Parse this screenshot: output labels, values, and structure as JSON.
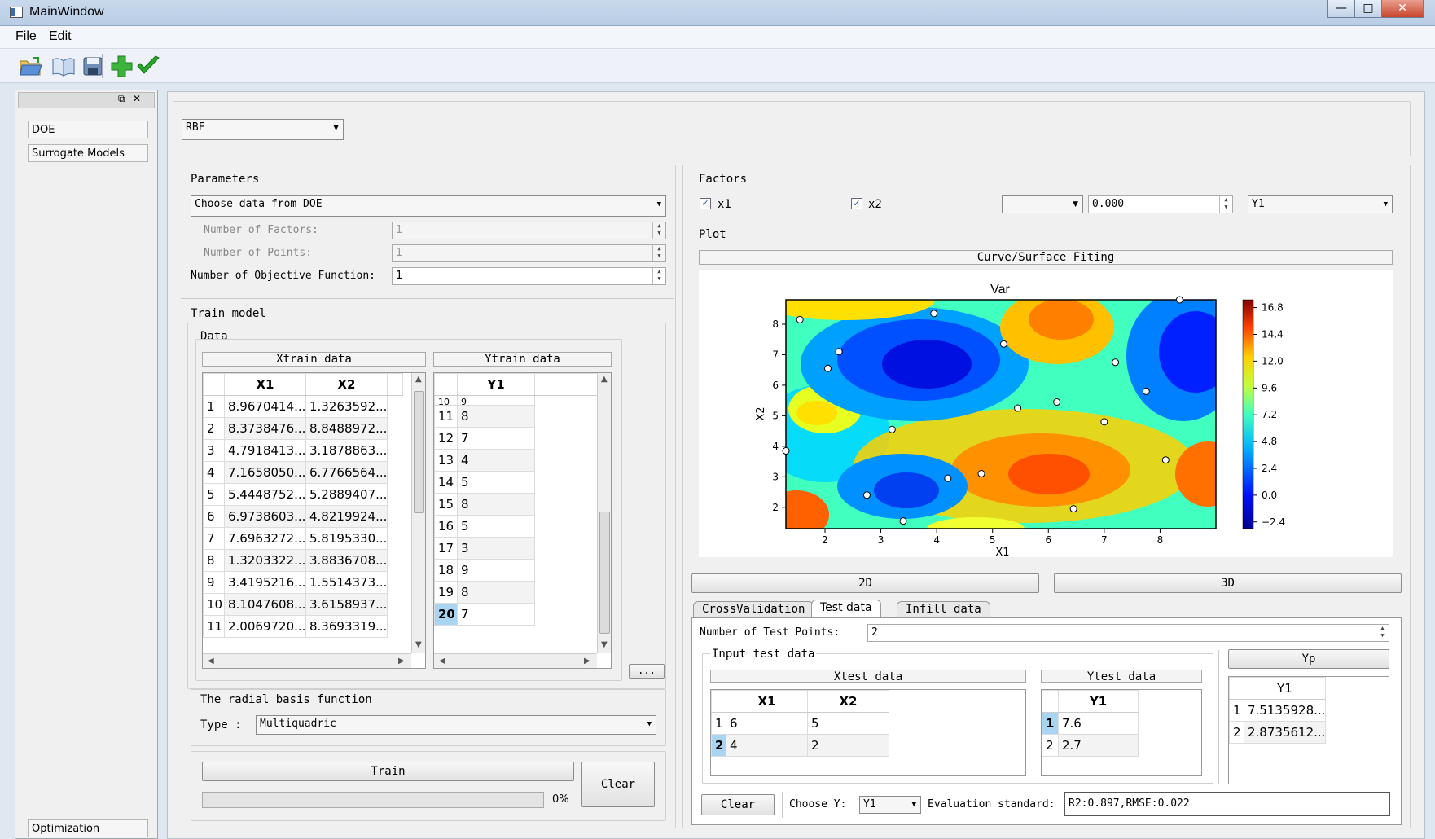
{
  "window": {
    "title": "MainWindow",
    "minimize": "—",
    "maximize": "□",
    "close": "✕"
  },
  "menu": {
    "file": "File",
    "edit": "Edit"
  },
  "toolbar": {
    "icons": [
      "open-folder-icon",
      "open-book-icon",
      "save-icon",
      "add-icon",
      "check-icon"
    ]
  },
  "dock": {
    "items": [
      "DOE",
      "Surrogate Models"
    ],
    "bottom": "Optimization",
    "float": "⧉",
    "close": "✕"
  },
  "model_select": "RBF",
  "parameters": {
    "title": "Parameters",
    "source": "Choose data from DOE",
    "factors_label": "Number of Factors:",
    "factors_value": "1",
    "points_label": "Number of Points:",
    "points_value": "1",
    "objective_label": "Number of Objective Function:",
    "objective_value": "1"
  },
  "train": {
    "title": "Train model",
    "data_title": "Data",
    "xtrain_title": "Xtrain data",
    "ytrain_title": "Ytrain data",
    "xtrain_headers": [
      "X1",
      "X2"
    ],
    "xtrain_rows": [
      [
        "1",
        "8.9670414...",
        "1.3263592..."
      ],
      [
        "2",
        "8.3738476...",
        "8.8488972..."
      ],
      [
        "3",
        "4.7918413...",
        "3.1878863..."
      ],
      [
        "4",
        "7.1658050...",
        "6.7766564..."
      ],
      [
        "5",
        "5.4448752...",
        "5.2889407..."
      ],
      [
        "6",
        "6.9738603...",
        "4.8219924..."
      ],
      [
        "7",
        "7.6963272...",
        "5.8195330..."
      ],
      [
        "8",
        "1.3203322...",
        "3.8836708..."
      ],
      [
        "9",
        "3.4195216...",
        "1.5514373..."
      ],
      [
        "10",
        "8.1047608...",
        "3.6158937..."
      ],
      [
        "11",
        "2.0069720...",
        "8.3693319..."
      ]
    ],
    "ytrain_header": "Y1",
    "ytrain_rows": [
      [
        "10",
        "9"
      ],
      [
        "11",
        "8"
      ],
      [
        "12",
        "7"
      ],
      [
        "13",
        "4"
      ],
      [
        "14",
        "5"
      ],
      [
        "15",
        "8"
      ],
      [
        "16",
        "5"
      ],
      [
        "17",
        "3"
      ],
      [
        "18",
        "9"
      ],
      [
        "19",
        "8"
      ],
      [
        "20",
        "7"
      ]
    ],
    "more_button": "...",
    "rbf_title": "The radial basis function",
    "type_label": "Type :",
    "type_value": "Multiquadric",
    "train_button": "Train",
    "clear_button": "Clear",
    "progress": "0%",
    "progress_value": 0
  },
  "factors": {
    "title": "Factors",
    "x1": "x1",
    "x2": "x2",
    "combo_empty": "",
    "value": "0.000",
    "y_select": "Y1"
  },
  "plot": {
    "title": "Plot",
    "header": "Curve/Surface Fiting",
    "chart_title": "Var",
    "xlabel": "X1",
    "ylabel": "X2",
    "xticks": [
      "2",
      "3",
      "4",
      "5",
      "6",
      "7",
      "8"
    ],
    "yticks": [
      "2",
      "3",
      "4",
      "5",
      "6",
      "7",
      "8"
    ],
    "colorbar_ticks": [
      "16.8",
      "14.4",
      "12.0",
      "9.6",
      "7.2",
      "4.8",
      "2.4",
      "0.0",
      "−2.4"
    ],
    "btn_2d": "2D",
    "btn_3d": "3D"
  },
  "chart_data": {
    "type": "heatmap",
    "title": "Var",
    "xlabel": "X1",
    "ylabel": "X2",
    "xlim": [
      1.3,
      9.0
    ],
    "ylim": [
      1.3,
      8.8
    ],
    "colorbar_range": [
      -3.0,
      17.5
    ],
    "points": [
      [
        1.55,
        8.15
      ],
      [
        3.95,
        8.35
      ],
      [
        5.2,
        7.35
      ],
      [
        2.25,
        7.1
      ],
      [
        2.05,
        6.55
      ],
      [
        7.2,
        6.75
      ],
      [
        6.15,
        5.45
      ],
      [
        5.45,
        5.25
      ],
      [
        7.75,
        5.8
      ],
      [
        3.2,
        4.55
      ],
      [
        7.0,
        4.8
      ],
      [
        1.3,
        3.85
      ],
      [
        8.1,
        3.55
      ],
      [
        4.2,
        2.95
      ],
      [
        4.8,
        3.1
      ],
      [
        2.75,
        2.4
      ],
      [
        6.45,
        1.95
      ],
      [
        3.4,
        1.55
      ],
      [
        8.35,
        8.8
      ]
    ]
  },
  "tabs": [
    "CrossValidation",
    "Test data",
    "Infill data"
  ],
  "test": {
    "points_label": "Number of Test Points:",
    "points_value": "2",
    "input_title": "Input test data",
    "xtest_title": "Xtest data",
    "ytest_title": "Ytest data",
    "xtest_headers": [
      "X1",
      "X2"
    ],
    "xtest_rows": [
      [
        "1",
        "6",
        "5"
      ],
      [
        "2",
        "4",
        "2"
      ]
    ],
    "ytest_header": "Y1",
    "ytest_rows": [
      [
        "1",
        "7.6"
      ],
      [
        "2",
        "2.7"
      ]
    ],
    "yp_button": "Yp",
    "yp_header": "Y1",
    "yp_rows": [
      [
        "1",
        "7.5135928..."
      ],
      [
        "2",
        "2.8735612..."
      ]
    ],
    "clear_button": "Clear",
    "choose_label": "Choose Y:",
    "choose_value": "Y1",
    "eval_label": "Evaluation standard:",
    "eval_value": "R2:0.897,RMSE:0.022"
  }
}
